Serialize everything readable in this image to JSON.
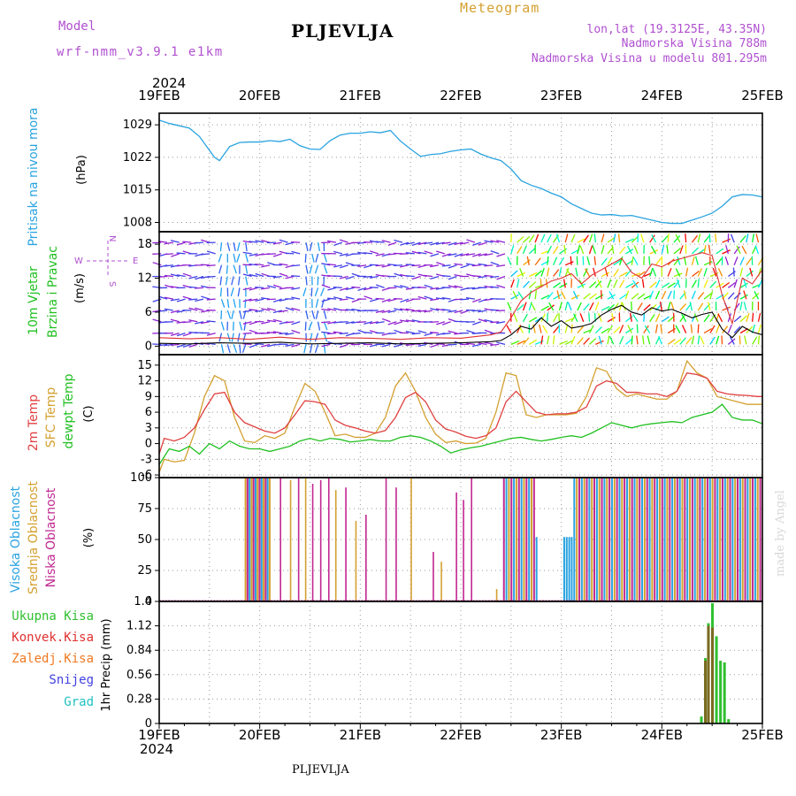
{
  "header": {
    "model_label": "Model",
    "model_name": "wrf-nmm_v3.9.1 e1km",
    "station": "PLJEVLJA",
    "meteogram": "Meteogram",
    "lonlat": "lon,lat (19.3125E, 43.35N)",
    "elevation": "Nadmorska Visina 788m",
    "elevation_model": "Nadmorska Visina u modelu 801.295m",
    "footer_station": "PLJEVLJA",
    "made_by": "made by Angel"
  },
  "colors": {
    "pressure": "#29a3e0",
    "wind_label": "#20c020",
    "wind_speed_line": "#000000",
    "gust_line": "#e03030",
    "temp2m": "#e04040",
    "sfc_temp": "#d4a030",
    "dewpt": "#20c020",
    "cloud_high": "#29a3e0",
    "cloud_mid": "#d4a030",
    "cloud_low": "#c02890",
    "precip_total": "#30c030",
    "precip_conv": "#e03030",
    "precip_frozen": "#f07820",
    "precip_snow": "#4040e0",
    "precip_graupel": "#20c0c0",
    "purple_text": "#b050d0"
  },
  "time_axis": {
    "year": "2024",
    "ticks": [
      "19FEB",
      "20FEB",
      "21FEB",
      "22FEB",
      "23FEB",
      "24FEB",
      "25FEB"
    ],
    "days": 6
  },
  "chart_data": [
    {
      "type": "line",
      "panel": "pressure",
      "ylabel": "Pritisak na nivou mora",
      "unit": "(hPa)",
      "yticks": [
        1008,
        1015,
        1022,
        1029
      ],
      "ylim": [
        1006,
        1031.5
      ],
      "series": [
        {
          "values_x": [
            0,
            0.1,
            0.2,
            0.3,
            0.4,
            0.5,
            0.55,
            0.6,
            0.65,
            0.7,
            0.8,
            0.9,
            1.0,
            1.1,
            1.2,
            1.3,
            1.4,
            1.5,
            1.6,
            1.7,
            1.8,
            1.9,
            2.0,
            2.1,
            2.2,
            2.3,
            2.4,
            2.5,
            2.6,
            2.7,
            2.8,
            2.9,
            3.0,
            3.1,
            3.2,
            3.3,
            3.4,
            3.5,
            3.6,
            3.7,
            3.8,
            3.9,
            4.0,
            4.1,
            4.2,
            4.3,
            4.4,
            4.5,
            4.6,
            4.7,
            4.8,
            4.9,
            5.0,
            5.1,
            5.2,
            5.3,
            5.4,
            5.5,
            5.6,
            5.7,
            5.8,
            5.9,
            6.0
          ],
          "values": [
            1030,
            1029.3,
            1028.8,
            1028.3,
            1026.5,
            1023.5,
            1022,
            1021.3,
            1022.8,
            1024.3,
            1025.2,
            1025.3,
            1025.3,
            1025.6,
            1025.4,
            1025.9,
            1024.5,
            1023.8,
            1023.7,
            1025.6,
            1026.8,
            1027.2,
            1027.2,
            1027.5,
            1027.3,
            1027.8,
            1025.5,
            1023.8,
            1022.2,
            1022.6,
            1022.8,
            1023.3,
            1023.6,
            1023.8,
            1022.7,
            1021.9,
            1021.3,
            1019.5,
            1017,
            1016,
            1015.3,
            1014.3,
            1013.5,
            1012,
            1011,
            1010,
            1009.6,
            1009.7,
            1009.4,
            1009.5,
            1009.0,
            1008.5,
            1008.0,
            1007.8,
            1007.8,
            1008.5,
            1009.2,
            1010.0,
            1011.5,
            1013.5,
            1014.0,
            1013.9,
            1013.5
          ]
        }
      ]
    },
    {
      "type": "line",
      "panel": "wind",
      "ylabel_1": "10m Vjetar",
      "ylabel_2": "Brzina i Pravac",
      "unit": "(m/s)",
      "compass": {
        "n": "N",
        "e": "E",
        "s": "S",
        "w": "W"
      },
      "yticks": [
        0,
        6,
        12,
        18
      ],
      "ylim": [
        -1.5,
        20.2
      ],
      "series": [
        {
          "name": "speed",
          "values_x": [
            0,
            0.3,
            0.6,
            0.9,
            1.2,
            1.5,
            1.8,
            2.1,
            2.4,
            2.7,
            3.0,
            3.3,
            3.4,
            3.5,
            3.6,
            3.7,
            3.8,
            3.9,
            4.0,
            4.1,
            4.2,
            4.3,
            4.4,
            4.5,
            4.6,
            4.7,
            4.8,
            4.9,
            5.0,
            5.1,
            5.2,
            5.3,
            5.4,
            5.5,
            5.6,
            5.7,
            5.8,
            5.9,
            6.0
          ],
          "values": [
            0.5,
            0.4,
            0.6,
            0.5,
            0.7,
            0.4,
            0.5,
            0.6,
            0.4,
            0.5,
            0.6,
            0.8,
            1.0,
            2.0,
            3.5,
            3.0,
            5.0,
            3.5,
            4.5,
            3.2,
            3.5,
            4.0,
            5.5,
            6.5,
            7.2,
            6.0,
            5.5,
            6.8,
            6.2,
            6.5,
            5.8,
            5.0,
            5.6,
            6.0,
            3.0,
            1.5,
            3.5,
            2.5,
            2.0
          ]
        },
        {
          "name": "gust",
          "values_x": [
            0,
            0.3,
            0.6,
            0.9,
            1.2,
            1.5,
            1.8,
            2.1,
            2.4,
            2.7,
            3.0,
            3.3,
            3.4,
            3.5,
            3.6,
            3.7,
            3.8,
            3.9,
            4.0,
            4.1,
            4.2,
            4.3,
            4.4,
            4.5,
            4.6,
            4.7,
            4.8,
            4.9,
            5.0,
            5.1,
            5.2,
            5.3,
            5.4,
            5.5,
            5.6,
            5.7,
            5.8,
            5.9,
            6.0
          ],
          "values": [
            1.5,
            1.3,
            1.5,
            1.2,
            1.6,
            1.2,
            1.5,
            1.4,
            1.2,
            1.5,
            1.4,
            2.0,
            2.5,
            5.0,
            8.0,
            9.5,
            10.5,
            11.5,
            12,
            12.8,
            11,
            12.5,
            13.5,
            14.5,
            15.5,
            13,
            12,
            14.5,
            14,
            15,
            15.5,
            16,
            16.5,
            16,
            9,
            4,
            12,
            11,
            13.5
          ]
        }
      ]
    },
    {
      "type": "line",
      "panel": "temperature",
      "ylabel_1": "2m Temp",
      "ylabel_2": "SFC Temp",
      "ylabel_3": "dewpt Temp",
      "unit": "(C)",
      "yticks": [
        -6,
        -3,
        0,
        3,
        6,
        9,
        12,
        15
      ],
      "ylim": [
        -6.5,
        17
      ],
      "series": [
        {
          "name": "2m",
          "values_x": [
            0,
            0.05,
            0.15,
            0.25,
            0.35,
            0.45,
            0.55,
            0.65,
            0.75,
            0.85,
            0.95,
            1.05,
            1.15,
            1.25,
            1.35,
            1.45,
            1.55,
            1.65,
            1.75,
            1.85,
            1.95,
            2.05,
            2.15,
            2.25,
            2.35,
            2.45,
            2.55,
            2.65,
            2.75,
            2.85,
            2.95,
            3.05,
            3.15,
            3.25,
            3.35,
            3.45,
            3.55,
            3.65,
            3.75,
            3.85,
            3.95,
            4.05,
            4.15,
            4.25,
            4.35,
            4.45,
            4.55,
            4.65,
            4.75,
            4.85,
            4.95,
            5.05,
            5.15,
            5.25,
            5.35,
            5.45,
            5.55,
            5.65,
            5.75,
            5.85,
            5.95,
            6.0
          ],
          "values": [
            -2,
            1,
            0.5,
            1.2,
            3,
            6.5,
            9.5,
            9.8,
            6,
            4,
            3.2,
            2.4,
            2.0,
            3.0,
            5.5,
            8.2,
            8.0,
            7.5,
            4.5,
            3.5,
            3.0,
            2.4,
            2.0,
            2.5,
            5,
            8.8,
            9.8,
            8.0,
            4.5,
            2.8,
            2.2,
            1.4,
            1.0,
            1.5,
            3,
            8,
            10,
            8,
            6,
            5.5,
            5.7,
            5.7,
            6.0,
            7,
            11,
            12,
            11.5,
            9.8,
            9.8,
            9.5,
            9.5,
            9,
            10,
            13.5,
            13.2,
            12.5,
            10,
            9.5,
            9.3,
            9.2,
            9.0,
            9.0
          ]
        },
        {
          "name": "sfc",
          "values_x": [
            0,
            0.05,
            0.15,
            0.25,
            0.35,
            0.45,
            0.55,
            0.65,
            0.75,
            0.85,
            0.95,
            1.05,
            1.15,
            1.25,
            1.35,
            1.45,
            1.55,
            1.65,
            1.75,
            1.85,
            1.95,
            2.05,
            2.15,
            2.25,
            2.35,
            2.45,
            2.55,
            2.65,
            2.75,
            2.85,
            2.95,
            3.05,
            3.15,
            3.25,
            3.35,
            3.45,
            3.55,
            3.65,
            3.75,
            3.85,
            3.95,
            4.05,
            4.15,
            4.25,
            4.35,
            4.45,
            4.55,
            4.65,
            4.75,
            4.85,
            4.95,
            5.05,
            5.15,
            5.25,
            5.35,
            5.45,
            5.55,
            5.65,
            5.75,
            5.85,
            5.95,
            6.0
          ],
          "values": [
            -5.5,
            -3,
            -3.5,
            -3.2,
            2,
            9,
            13,
            12,
            5,
            0.5,
            0.2,
            1.5,
            1.0,
            2.0,
            7,
            11.5,
            10,
            6.0,
            1.5,
            1.8,
            1.2,
            1.2,
            2.0,
            5,
            11,
            13.5,
            10,
            5.0,
            1.8,
            0.2,
            0.5,
            0.0,
            0.1,
            1.0,
            6,
            13.5,
            13,
            5.5,
            5.0,
            5.5,
            5.5,
            5.5,
            5.8,
            9,
            14.5,
            13.8,
            10.5,
            9.0,
            9.5,
            9.0,
            8.5,
            8.5,
            10,
            15.8,
            13.5,
            12.5,
            9,
            8.5,
            8.0,
            7.5,
            7.5,
            7.5
          ]
        },
        {
          "name": "dewpt",
          "values_x": [
            0,
            0.1,
            0.2,
            0.3,
            0.4,
            0.5,
            0.6,
            0.7,
            0.8,
            0.9,
            1.0,
            1.1,
            1.2,
            1.3,
            1.4,
            1.5,
            1.6,
            1.7,
            1.8,
            1.9,
            2.0,
            2.1,
            2.2,
            2.3,
            2.4,
            2.5,
            2.6,
            2.7,
            2.8,
            2.9,
            3.0,
            3.1,
            3.2,
            3.3,
            3.4,
            3.5,
            3.6,
            3.7,
            3.8,
            3.9,
            4.0,
            4.1,
            4.2,
            4.3,
            4.4,
            4.5,
            4.6,
            4.7,
            4.8,
            4.9,
            5.0,
            5.1,
            5.2,
            5.3,
            5.4,
            5.5,
            5.6,
            5.7,
            5.8,
            5.9,
            6.0
          ],
          "values": [
            -4,
            -1,
            -1.5,
            -0.5,
            -2,
            0,
            -1,
            0.5,
            -0.5,
            -1,
            -1,
            -1.5,
            -1,
            -0.5,
            0.5,
            1,
            0.5,
            1,
            0.8,
            0.3,
            0.5,
            0.8,
            0.5,
            0.5,
            1.2,
            1.5,
            1.2,
            0.5,
            -0.5,
            -1.8,
            -1.2,
            -0.8,
            -0.5,
            0,
            0.5,
            1.0,
            1.2,
            0.8,
            0.5,
            0.8,
            1.2,
            1.5,
            1.2,
            2.0,
            3,
            4,
            3.5,
            3.0,
            3.5,
            3.8,
            4,
            4.2,
            4.0,
            5,
            5.5,
            6.0,
            7.5,
            5,
            4.5,
            4.5,
            3.8
          ]
        }
      ]
    },
    {
      "type": "bar",
      "panel": "clouds",
      "ylabel_1": "Visoka Oblacnost",
      "ylabel_2": "Srednja Oblacnost",
      "ylabel_3": "Niska Oblacnost",
      "unit": "(%)",
      "yticks": [
        0,
        25,
        50,
        75,
        100
      ],
      "ylim": [
        0,
        100
      ]
    },
    {
      "type": "bar",
      "panel": "precip",
      "unit": "1hr Precip (mm)",
      "legend": [
        "Ukupna Kisa",
        "Konvek.Kisa",
        "Zaledj.Kisa",
        "Snijeg",
        "Grad"
      ],
      "yticks": [
        0,
        0.28,
        0.56,
        0.84,
        1.12,
        1.4
      ],
      "ytick_labels": [
        "0",
        "0.28",
        "0.56",
        "0.84",
        "1.12",
        "1.4"
      ],
      "ylim": [
        0,
        1.4
      ],
      "series": [
        {
          "name": "Ukupna Kisa",
          "x": [
            5.38,
            5.42,
            5.45,
            5.49,
            5.53,
            5.57,
            5.61,
            5.65
          ],
          "values": [
            0.08,
            0.75,
            1.15,
            1.38,
            1.0,
            0.72,
            0.7,
            0.05
          ]
        },
        {
          "name": "Zaledj.Kisa",
          "x": [
            5.42,
            5.45,
            5.49
          ],
          "values": [
            0.72,
            1.12,
            1.1
          ]
        }
      ]
    }
  ]
}
